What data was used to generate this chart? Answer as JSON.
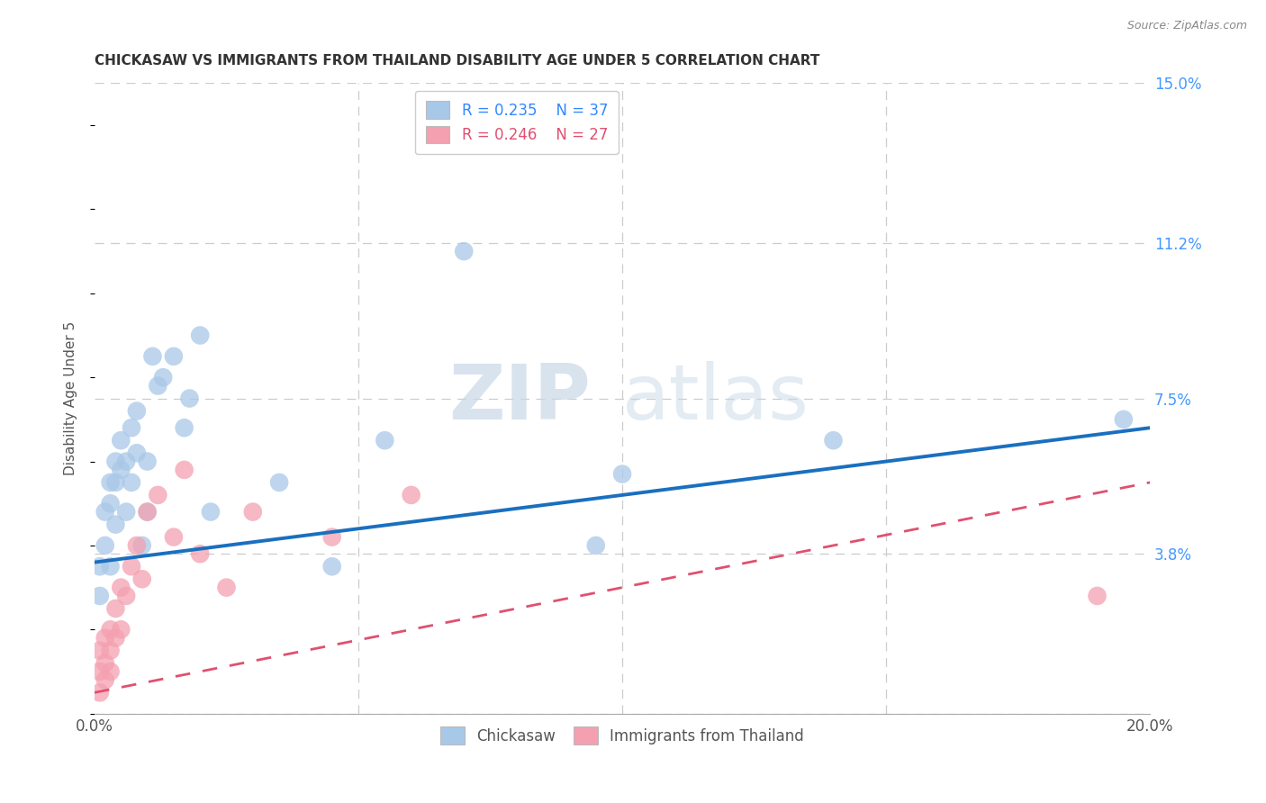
{
  "title": "CHICKASAW VS IMMIGRANTS FROM THAILAND DISABILITY AGE UNDER 5 CORRELATION CHART",
  "source": "Source: ZipAtlas.com",
  "ylabel": "Disability Age Under 5",
  "xlim": [
    0.0,
    0.2
  ],
  "ylim": [
    0.0,
    0.15
  ],
  "xticks": [
    0.0,
    0.05,
    0.1,
    0.15,
    0.2
  ],
  "xtick_labels": [
    "0.0%",
    "",
    "",
    "",
    "20.0%"
  ],
  "ytick_labels_right": [
    "15.0%",
    "11.2%",
    "7.5%",
    "3.8%",
    ""
  ],
  "yticks_right": [
    0.15,
    0.112,
    0.075,
    0.038,
    0.0
  ],
  "legend_r1": "R = 0.235",
  "legend_n1": "N = 37",
  "legend_r2": "R = 0.246",
  "legend_n2": "N = 27",
  "watermark_zip": "ZIP",
  "watermark_atlas": "atlas",
  "color_blue": "#A8C8E8",
  "color_pink": "#F4A0B0",
  "line_blue": "#1A6FBF",
  "line_pink": "#E05070",
  "blue_line_x0": 0.0,
  "blue_line_y0": 0.036,
  "blue_line_x1": 0.2,
  "blue_line_y1": 0.068,
  "pink_line_x0": 0.0,
  "pink_line_y0": 0.005,
  "pink_line_x1": 0.2,
  "pink_line_y1": 0.055,
  "chickasaw_x": [
    0.001,
    0.001,
    0.002,
    0.002,
    0.003,
    0.003,
    0.003,
    0.004,
    0.004,
    0.004,
    0.005,
    0.005,
    0.006,
    0.006,
    0.007,
    0.007,
    0.008,
    0.008,
    0.009,
    0.01,
    0.01,
    0.011,
    0.012,
    0.013,
    0.015,
    0.017,
    0.018,
    0.02,
    0.022,
    0.035,
    0.045,
    0.055,
    0.07,
    0.095,
    0.1,
    0.14,
    0.195
  ],
  "chickasaw_y": [
    0.035,
    0.028,
    0.048,
    0.04,
    0.055,
    0.05,
    0.035,
    0.06,
    0.055,
    0.045,
    0.065,
    0.058,
    0.06,
    0.048,
    0.068,
    0.055,
    0.072,
    0.062,
    0.04,
    0.06,
    0.048,
    0.085,
    0.078,
    0.08,
    0.085,
    0.068,
    0.075,
    0.09,
    0.048,
    0.055,
    0.035,
    0.065,
    0.11,
    0.04,
    0.057,
    0.065,
    0.07
  ],
  "thailand_x": [
    0.001,
    0.001,
    0.001,
    0.002,
    0.002,
    0.002,
    0.003,
    0.003,
    0.003,
    0.004,
    0.004,
    0.005,
    0.005,
    0.006,
    0.007,
    0.008,
    0.009,
    0.01,
    0.012,
    0.015,
    0.017,
    0.02,
    0.025,
    0.03,
    0.045,
    0.06,
    0.19
  ],
  "thailand_y": [
    0.005,
    0.01,
    0.015,
    0.012,
    0.018,
    0.008,
    0.02,
    0.015,
    0.01,
    0.025,
    0.018,
    0.03,
    0.02,
    0.028,
    0.035,
    0.04,
    0.032,
    0.048,
    0.052,
    0.042,
    0.058,
    0.038,
    0.03,
    0.048,
    0.042,
    0.052,
    0.028
  ]
}
